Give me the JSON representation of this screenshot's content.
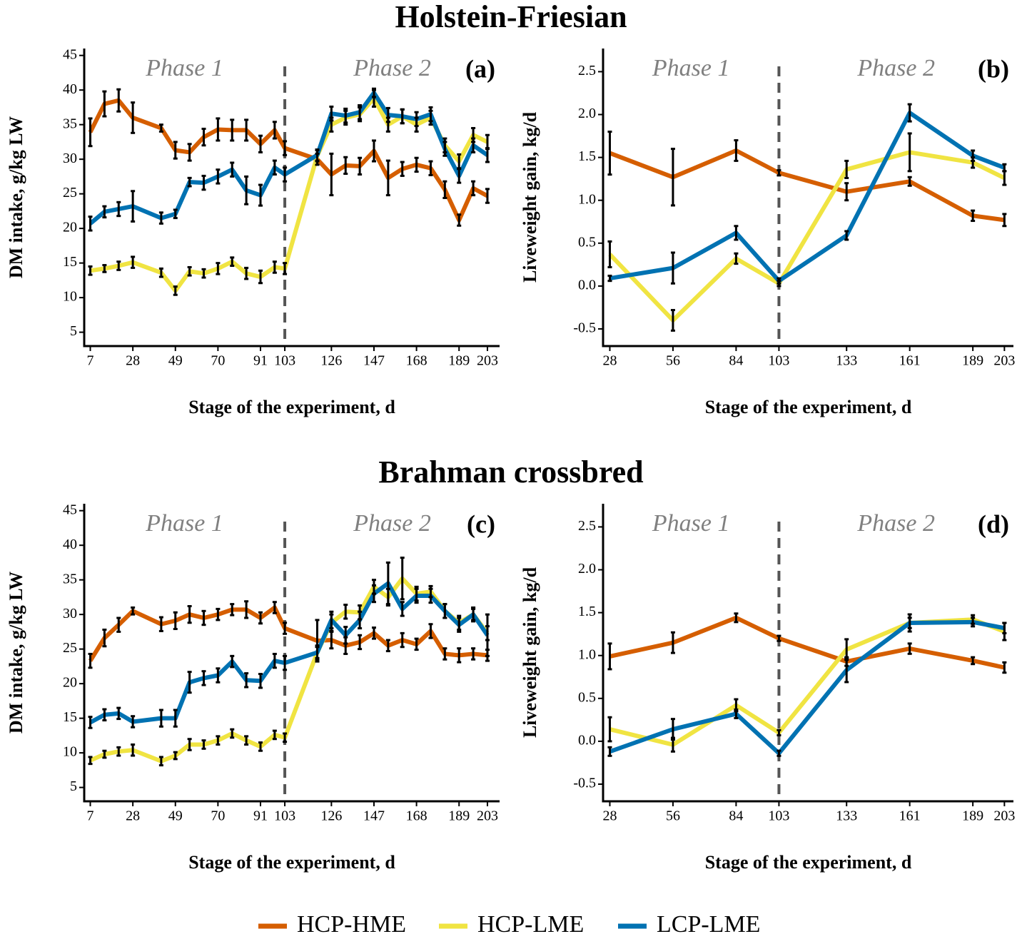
{
  "headings": [
    "Holstein-Friesian",
    "Brahman crossbred"
  ],
  "chart_data": [
    {
      "type": "line",
      "label": "(a)",
      "xlabel": "Stage of the experiment, d",
      "ylabel": "DM intake, g/kg LW",
      "annotations": [
        "Phase 1",
        "Phase 2"
      ],
      "vline": 103,
      "x": [
        7,
        14,
        21,
        28,
        42,
        49,
        56,
        63,
        70,
        77,
        84,
        91,
        98,
        103,
        119,
        126,
        133,
        140,
        147,
        154,
        161,
        168,
        175,
        182,
        189,
        196,
        203
      ],
      "xlim": [
        4,
        209
      ],
      "xticks": [
        7,
        28,
        49,
        70,
        91,
        103,
        126,
        147,
        168,
        189,
        203
      ],
      "ylim": [
        3,
        46
      ],
      "yticks": [
        5,
        10,
        15,
        20,
        25,
        30,
        35,
        40,
        45
      ],
      "series": [
        {
          "name": "HCP-HME",
          "color": "#d55e00",
          "values": [
            33.9,
            38.0,
            38.5,
            36.0,
            34.5,
            31.3,
            31.0,
            33.2,
            34.3,
            34.2,
            34.2,
            32.2,
            34.2,
            31.6,
            30.0,
            27.8,
            29.1,
            29.0,
            31.2,
            27.3,
            28.6,
            29.2,
            28.7,
            25.6,
            21.2,
            25.8,
            24.7
          ],
          "errors": [
            2.0,
            1.8,
            1.6,
            2.2,
            0.5,
            1.2,
            1.2,
            1.2,
            1.6,
            1.5,
            1.5,
            1.2,
            1.2,
            1.0,
            0.8,
            3.0,
            1.2,
            1.2,
            1.5,
            2.5,
            1.0,
            1.0,
            1.0,
            1.2,
            0.8,
            1.0,
            1.0
          ]
        },
        {
          "name": "HCP-LME",
          "color": "#f0e442",
          "values": [
            13.9,
            14.2,
            14.6,
            15.1,
            13.6,
            11.0,
            13.8,
            13.5,
            14.2,
            15.2,
            13.5,
            13.0,
            14.4,
            14.2,
            30.5,
            35.0,
            36.0,
            36.5,
            38.8,
            35.0,
            36.2,
            35.0,
            36.0,
            32.0,
            29.7,
            33.5,
            32.5
          ],
          "errors": [
            0.6,
            0.5,
            0.6,
            0.8,
            0.6,
            0.6,
            0.6,
            0.6,
            0.8,
            0.6,
            0.8,
            0.9,
            0.8,
            0.8,
            0.8,
            1.0,
            1.0,
            1.0,
            1.2,
            1.0,
            1.0,
            1.0,
            1.0,
            1.0,
            1.0,
            1.0,
            1.0
          ]
        },
        {
          "name": "LCP-LME",
          "color": "#0072b2",
          "values": [
            20.7,
            22.4,
            22.8,
            23.2,
            21.5,
            22.1,
            26.7,
            26.6,
            27.5,
            28.5,
            25.5,
            24.8,
            28.8,
            27.8,
            30.6,
            36.6,
            36.3,
            36.8,
            39.6,
            36.4,
            36.2,
            35.8,
            36.5,
            31.5,
            27.6,
            32.0,
            30.6
          ],
          "errors": [
            1.0,
            0.8,
            1.0,
            2.2,
            0.8,
            0.6,
            0.6,
            1.0,
            1.0,
            1.0,
            2.0,
            1.5,
            1.0,
            1.0,
            0.8,
            1.0,
            1.0,
            1.0,
            0.6,
            1.0,
            1.0,
            1.0,
            1.0,
            1.0,
            1.0,
            1.0,
            1.0
          ]
        }
      ]
    },
    {
      "type": "line",
      "label": "(b)",
      "xlabel": "Stage of the experiment, d",
      "ylabel": "Liveweight gain, kg/d",
      "annotations": [
        "Phase 1",
        "Phase 2"
      ],
      "vline": 103,
      "x": [
        28,
        56,
        84,
        103,
        133,
        161,
        189,
        203
      ],
      "xlim": [
        25,
        207
      ],
      "xticks": [
        28,
        56,
        84,
        103,
        133,
        161,
        189,
        203
      ],
      "ylim": [
        -0.7,
        2.77
      ],
      "yticks": [
        -0.5,
        {
          "value": 0,
          "label": "0.0"
        },
        0.5,
        {
          "value": 1,
          "label": "1.0"
        },
        1.5,
        {
          "value": 2,
          "label": "2.0"
        },
        2.5
      ],
      "series": [
        {
          "name": "HCP-HME",
          "color": "#d55e00",
          "values": [
            1.55,
            1.27,
            1.58,
            1.32,
            1.1,
            1.22,
            0.82,
            0.77
          ],
          "errors": [
            0.25,
            0.33,
            0.12,
            0.03,
            0.1,
            0.05,
            0.06,
            0.07
          ]
        },
        {
          "name": "HCP-LME",
          "color": "#f0e442",
          "values": [
            0.37,
            -0.4,
            0.32,
            0.03,
            1.36,
            1.56,
            1.44,
            1.26
          ],
          "errors": [
            0.15,
            0.12,
            0.06,
            0.03,
            0.1,
            0.22,
            0.06,
            0.08
          ]
        },
        {
          "name": "LCP-LME",
          "color": "#0072b2",
          "values": [
            0.09,
            0.21,
            0.62,
            0.06,
            0.59,
            2.02,
            1.52,
            1.38
          ],
          "errors": [
            0.03,
            0.18,
            0.08,
            0.03,
            0.05,
            0.1,
            0.06,
            0.04
          ]
        }
      ]
    },
    {
      "type": "line",
      "label": "(c)",
      "xlabel": "Stage of the experiment, d",
      "ylabel": "DM intake, g/kg LW",
      "annotations": [
        "Phase 1",
        "Phase 2"
      ],
      "vline": 103,
      "x": [
        7,
        14,
        21,
        28,
        42,
        49,
        56,
        63,
        70,
        77,
        84,
        91,
        98,
        103,
        119,
        126,
        133,
        140,
        147,
        154,
        161,
        168,
        175,
        182,
        189,
        196,
        203
      ],
      "xlim": [
        4,
        209
      ],
      "xticks": [
        7,
        28,
        49,
        70,
        91,
        103,
        126,
        147,
        168,
        189,
        203
      ],
      "ylim": [
        3,
        46
      ],
      "yticks": [
        5,
        10,
        15,
        20,
        25,
        30,
        35,
        40,
        45
      ],
      "series": [
        {
          "name": "HCP-HME",
          "color": "#d55e00",
          "values": [
            23.3,
            26.6,
            28.5,
            30.5,
            28.6,
            29.1,
            30.0,
            29.5,
            30.0,
            30.7,
            30.7,
            29.5,
            31.0,
            28.0,
            26.2,
            26.3,
            25.5,
            26.0,
            27.3,
            25.5,
            26.3,
            25.7,
            27.6,
            24.3,
            24.1,
            24.3,
            24.1
          ],
          "errors": [
            1.0,
            1.2,
            1.0,
            0.5,
            1.0,
            1.2,
            1.2,
            1.0,
            0.8,
            0.8,
            1.2,
            0.8,
            0.8,
            0.8,
            3.0,
            1.2,
            1.2,
            1.0,
            0.8,
            0.8,
            1.0,
            0.8,
            1.0,
            0.8,
            1.0,
            0.8,
            0.8
          ]
        },
        {
          "name": "HCP-LME",
          "color": "#f0e442",
          "values": [
            8.9,
            9.8,
            10.2,
            10.4,
            8.8,
            9.6,
            11.2,
            11.2,
            11.8,
            12.8,
            11.8,
            10.9,
            12.6,
            12.2,
            24.5,
            28.8,
            30.4,
            30.3,
            34.0,
            32.5,
            35.2,
            33.0,
            33.3,
            30.5,
            28.8,
            30.0,
            27.3
          ],
          "errors": [
            0.5,
            0.5,
            0.6,
            0.8,
            0.6,
            0.5,
            0.8,
            0.6,
            0.6,
            0.6,
            0.6,
            0.6,
            0.6,
            0.6,
            0.8,
            1.2,
            1.0,
            1.0,
            1.0,
            1.2,
            3.0,
            1.0,
            0.8,
            1.0,
            1.0,
            1.0,
            1.0
          ]
        },
        {
          "name": "LCP-LME",
          "color": "#0072b2",
          "values": [
            14.4,
            15.5,
            15.7,
            14.5,
            15.0,
            15.0,
            20.2,
            20.8,
            21.2,
            23.2,
            20.5,
            20.4,
            23.3,
            23.0,
            24.5,
            29.2,
            27.0,
            29.2,
            33.0,
            34.5,
            30.8,
            32.7,
            32.7,
            30.5,
            28.5,
            30.0,
            27.0
          ],
          "errors": [
            0.8,
            0.8,
            0.8,
            0.8,
            1.2,
            1.2,
            1.5,
            1.0,
            1.0,
            0.8,
            1.0,
            1.0,
            1.0,
            1.0,
            1.0,
            1.2,
            1.2,
            1.2,
            1.2,
            3.0,
            1.0,
            1.0,
            1.0,
            1.0,
            1.0,
            0.8,
            3.0
          ]
        }
      ]
    },
    {
      "type": "line",
      "label": "(d)",
      "xlabel": "Stage of the experiment, d",
      "ylabel": "Liveweight gain, kg/d",
      "annotations": [
        "Phase 1",
        "Phase 2"
      ],
      "vline": 103,
      "x": [
        28,
        56,
        84,
        103,
        133,
        161,
        189,
        203
      ],
      "xlim": [
        25,
        207
      ],
      "xticks": [
        28,
        56,
        84,
        103,
        133,
        161,
        189,
        203
      ],
      "ylim": [
        -0.7,
        2.77
      ],
      "yticks": [
        -0.5,
        {
          "value": 0,
          "label": "0.0"
        },
        0.5,
        {
          "value": 1,
          "label": "1.0"
        },
        1.5,
        {
          "value": 2,
          "label": "2.0"
        },
        2.5
      ],
      "series": [
        {
          "name": "HCP-HME",
          "color": "#d55e00",
          "values": [
            0.99,
            1.15,
            1.44,
            1.2,
            0.93,
            1.08,
            0.94,
            0.86
          ],
          "errors": [
            0.15,
            0.12,
            0.05,
            0.03,
            0.05,
            0.06,
            0.04,
            0.06
          ]
        },
        {
          "name": "HCP-LME",
          "color": "#f0e442",
          "values": [
            0.14,
            -0.04,
            0.42,
            0.1,
            1.07,
            1.38,
            1.42,
            1.28
          ],
          "errors": [
            0.14,
            0.08,
            0.07,
            0.03,
            0.12,
            0.1,
            0.05,
            0.1
          ]
        },
        {
          "name": "LCP-LME",
          "color": "#0072b2",
          "values": [
            -0.12,
            0.14,
            0.32,
            -0.14,
            0.83,
            1.38,
            1.39,
            1.32
          ],
          "errors": [
            0.05,
            0.12,
            0.05,
            0.03,
            0.14,
            0.06,
            0.05,
            0.06
          ]
        }
      ]
    }
  ]
}
